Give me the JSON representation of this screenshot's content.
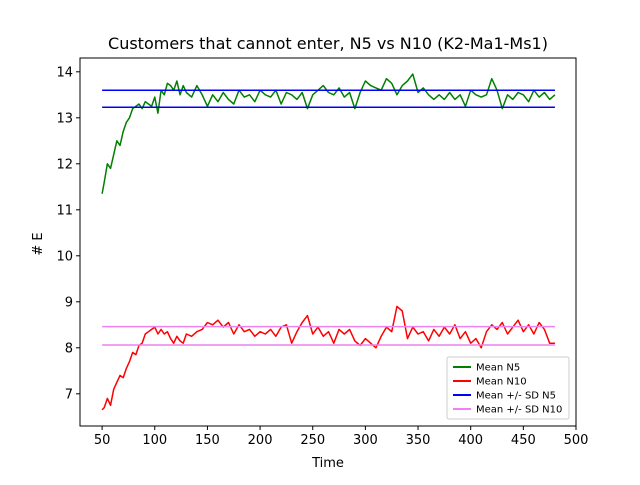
{
  "chart_data": {
    "type": "line",
    "title": "Customers that cannot enter, N5 vs N10 (K2-Ma1-Ms1)",
    "xlabel": "Time",
    "ylabel": "# E",
    "xlim": [
      29,
      500
    ],
    "ylim": [
      6.3,
      14.3
    ],
    "xticks": [
      50,
      100,
      150,
      200,
      250,
      300,
      350,
      400,
      450,
      500
    ],
    "yticks": [
      7,
      8,
      9,
      10,
      11,
      12,
      13,
      14
    ],
    "grid": false,
    "legend_position": "lower-right",
    "colors": {
      "Mean N5": "#008000",
      "Mean N10": "#ff0000",
      "Mean +/- SD N5": "#0000ff",
      "Mean +/- SD N10": "#ee82ee"
    },
    "legend": [
      "Mean N5",
      "Mean N10",
      "Mean +/- SD N5",
      "Mean +/- SD N10"
    ],
    "series": [
      {
        "name": "Mean N5",
        "kind": "line",
        "color": "#008000",
        "x": [
          50,
          52,
          55,
          58,
          61,
          64,
          67,
          70,
          73,
          76,
          79,
          82,
          85,
          88,
          91,
          94,
          97,
          100,
          103,
          106,
          109,
          112,
          115,
          118,
          121,
          124,
          127,
          130,
          135,
          140,
          145,
          150,
          155,
          160,
          165,
          170,
          175,
          180,
          185,
          190,
          195,
          200,
          205,
          210,
          215,
          220,
          225,
          230,
          235,
          240,
          245,
          250,
          255,
          260,
          265,
          270,
          275,
          280,
          285,
          290,
          295,
          300,
          305,
          310,
          315,
          320,
          325,
          330,
          335,
          340,
          345,
          350,
          355,
          360,
          365,
          370,
          375,
          380,
          385,
          390,
          395,
          400,
          405,
          410,
          415,
          420,
          425,
          430,
          435,
          440,
          445,
          450,
          455,
          460,
          465,
          470,
          475,
          480
        ],
        "y": [
          11.35,
          11.6,
          12.0,
          11.9,
          12.2,
          12.5,
          12.4,
          12.7,
          12.9,
          13.0,
          13.2,
          13.25,
          13.3,
          13.2,
          13.35,
          13.3,
          13.25,
          13.45,
          13.1,
          13.6,
          13.5,
          13.75,
          13.7,
          13.6,
          13.8,
          13.5,
          13.7,
          13.55,
          13.45,
          13.7,
          13.5,
          13.25,
          13.5,
          13.35,
          13.55,
          13.4,
          13.3,
          13.6,
          13.45,
          13.5,
          13.35,
          13.6,
          13.5,
          13.45,
          13.6,
          13.3,
          13.55,
          13.5,
          13.4,
          13.55,
          13.2,
          13.5,
          13.6,
          13.7,
          13.55,
          13.5,
          13.65,
          13.45,
          13.55,
          13.2,
          13.55,
          13.8,
          13.7,
          13.65,
          13.6,
          13.85,
          13.75,
          13.5,
          13.7,
          13.8,
          13.95,
          13.55,
          13.65,
          13.5,
          13.4,
          13.5,
          13.4,
          13.55,
          13.4,
          13.5,
          13.25,
          13.6,
          13.5,
          13.45,
          13.5,
          13.85,
          13.6,
          13.2,
          13.5,
          13.4,
          13.55,
          13.5,
          13.35,
          13.6,
          13.45,
          13.55,
          13.4,
          13.5
        ]
      },
      {
        "name": "Mean N10",
        "kind": "line",
        "color": "#ff0000",
        "x": [
          50,
          52,
          55,
          58,
          61,
          64,
          67,
          70,
          73,
          76,
          79,
          82,
          85,
          88,
          91,
          94,
          97,
          100,
          103,
          106,
          109,
          112,
          115,
          118,
          121,
          124,
          127,
          130,
          135,
          140,
          145,
          150,
          155,
          160,
          165,
          170,
          175,
          180,
          185,
          190,
          195,
          200,
          205,
          210,
          215,
          220,
          225,
          230,
          235,
          240,
          245,
          250,
          255,
          260,
          265,
          270,
          275,
          280,
          285,
          290,
          295,
          300,
          305,
          310,
          315,
          320,
          325,
          330,
          335,
          340,
          345,
          350,
          355,
          360,
          365,
          370,
          375,
          380,
          385,
          390,
          395,
          400,
          405,
          410,
          415,
          420,
          425,
          430,
          435,
          440,
          445,
          450,
          455,
          460,
          465,
          470,
          475,
          480
        ],
        "y": [
          6.65,
          6.7,
          6.9,
          6.75,
          7.1,
          7.25,
          7.4,
          7.35,
          7.55,
          7.7,
          7.9,
          7.85,
          8.05,
          8.1,
          8.3,
          8.35,
          8.4,
          8.45,
          8.3,
          8.4,
          8.3,
          8.35,
          8.2,
          8.1,
          8.25,
          8.15,
          8.1,
          8.3,
          8.25,
          8.35,
          8.4,
          8.55,
          8.5,
          8.6,
          8.45,
          8.55,
          8.3,
          8.5,
          8.35,
          8.4,
          8.25,
          8.35,
          8.3,
          8.4,
          8.25,
          8.45,
          8.5,
          8.1,
          8.35,
          8.55,
          8.7,
          8.3,
          8.45,
          8.25,
          8.35,
          8.1,
          8.4,
          8.3,
          8.4,
          8.15,
          8.05,
          8.2,
          8.1,
          8.0,
          8.25,
          8.45,
          8.35,
          8.9,
          8.8,
          8.2,
          8.45,
          8.3,
          8.35,
          8.15,
          8.4,
          8.25,
          8.45,
          8.3,
          8.5,
          8.2,
          8.35,
          8.1,
          8.2,
          8.0,
          8.35,
          8.5,
          8.4,
          8.55,
          8.3,
          8.45,
          8.6,
          8.35,
          8.5,
          8.3,
          8.55,
          8.4,
          8.1,
          8.1
        ]
      },
      {
        "name": "Mean +/- SD N5",
        "kind": "hlines",
        "color": "#0000ff",
        "x": [
          50,
          480
        ],
        "y": [
          13.23,
          13.6
        ]
      },
      {
        "name": "Mean +/- SD N10",
        "kind": "hlines",
        "color": "#ee82ee",
        "x": [
          50,
          480
        ],
        "y": [
          8.06,
          8.46
        ]
      }
    ]
  }
}
